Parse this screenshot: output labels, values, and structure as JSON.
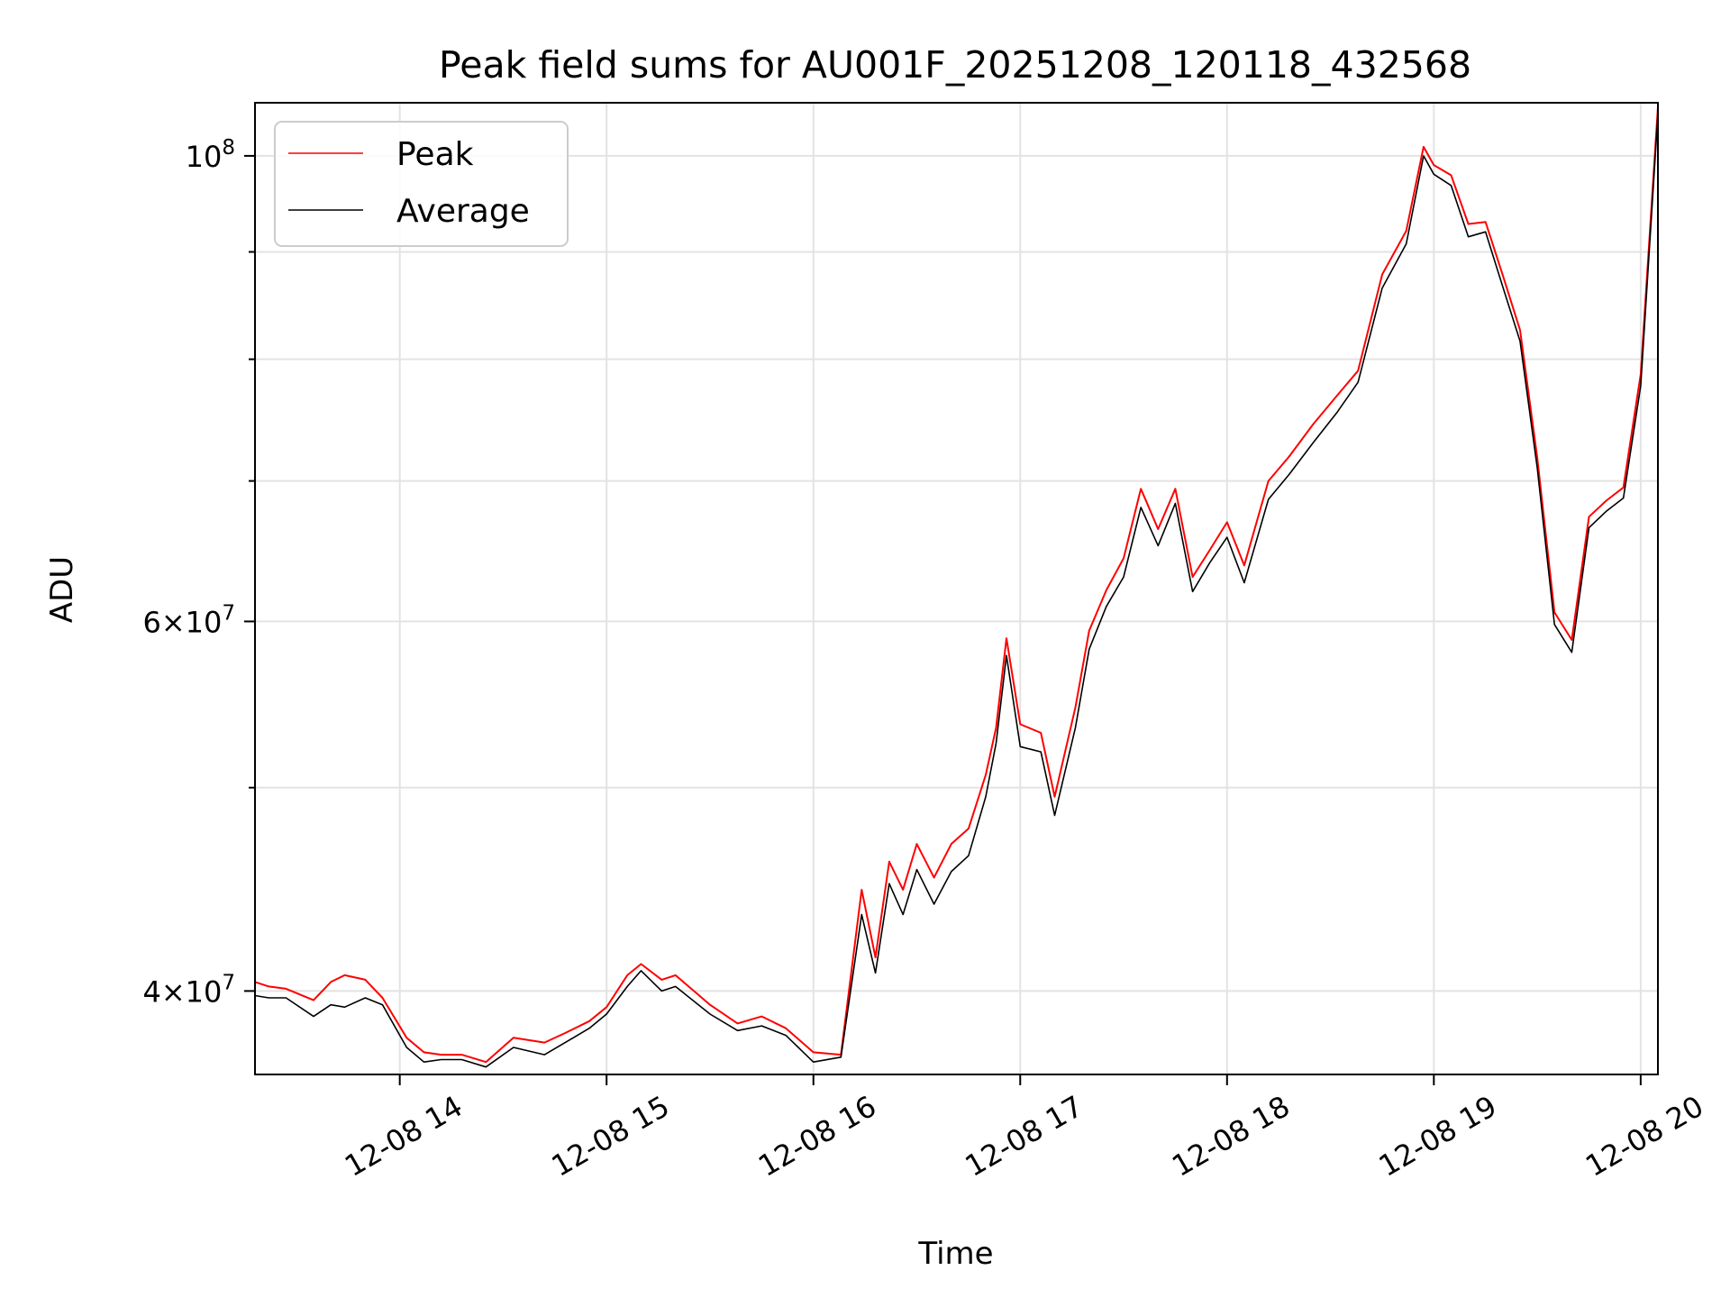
{
  "chart_data": {
    "type": "line",
    "title": "Peak field sums for AU001F_20251208_120118_432568",
    "xlabel": "Time",
    "ylabel": "ADU",
    "y_scale": "log",
    "xlim": [
      "12-08 13:18",
      "12-08 20:05"
    ],
    "ylim": [
      36500000,
      106000000
    ],
    "grid": true,
    "legend_position": "upper-left",
    "x_ticks": [
      "12-08 14",
      "12-08 15",
      "12-08 16",
      "12-08 17",
      "12-08 18",
      "12-08 19",
      "12-08 20"
    ],
    "x_tick_times": [
      "12-08 14:00",
      "12-08 15:00",
      "12-08 16:00",
      "12-08 17:00",
      "12-08 18:00",
      "12-08 19:00",
      "12-08 20:00"
    ],
    "y_ticks_major": [
      {
        "value": 40000000,
        "mantissa": "4",
        "exponent": "7"
      },
      {
        "value": 60000000,
        "mantissa": "6",
        "exponent": "7"
      },
      {
        "value": 100000000,
        "mantissa": "",
        "exponent": "8"
      }
    ],
    "y_ticks_minor": [
      50000000,
      70000000,
      80000000,
      90000000
    ],
    "series": [
      {
        "name": "Peak",
        "color": "#ff0000",
        "x": [
          "12-08 13:18",
          "12-08 13:22",
          "12-08 13:27",
          "12-08 13:35",
          "12-08 13:40",
          "12-08 13:44",
          "12-08 13:50",
          "12-08 13:55",
          "12-08 14:02",
          "12-08 14:07",
          "12-08 14:12",
          "12-08 14:18",
          "12-08 14:25",
          "12-08 14:33",
          "12-08 14:42",
          "12-08 14:48",
          "12-08 14:55",
          "12-08 15:00",
          "12-08 15:06",
          "12-08 15:10",
          "12-08 15:16",
          "12-08 15:20",
          "12-08 15:30",
          "12-08 15:38",
          "12-08 15:45",
          "12-08 15:52",
          "12-08 16:00",
          "12-08 16:08",
          "12-08 16:14",
          "12-08 16:18",
          "12-08 16:22",
          "12-08 16:26",
          "12-08 16:30",
          "12-08 16:35",
          "12-08 16:40",
          "12-08 16:45",
          "12-08 16:50",
          "12-08 16:53",
          "12-08 16:56",
          "12-08 17:00",
          "12-08 17:06",
          "12-08 17:10",
          "12-08 17:16",
          "12-08 17:20",
          "12-08 17:25",
          "12-08 17:30",
          "12-08 17:35",
          "12-08 17:40",
          "12-08 17:45",
          "12-08 17:50",
          "12-08 17:55",
          "12-08 18:00",
          "12-08 18:05",
          "12-08 18:12",
          "12-08 18:18",
          "12-08 18:25",
          "12-08 18:32",
          "12-08 18:38",
          "12-08 18:45",
          "12-08 18:52",
          "12-08 18:57",
          "12-08 19:00",
          "12-08 19:05",
          "12-08 19:10",
          "12-08 19:15",
          "12-08 19:20",
          "12-08 19:25",
          "12-08 19:30",
          "12-08 19:35",
          "12-08 19:40",
          "12-08 19:45",
          "12-08 19:50",
          "12-08 19:55",
          "12-08 20:00",
          "12-08 20:05"
        ],
        "values": [
          40400000,
          40200000,
          40100000,
          39600000,
          40400000,
          40700000,
          40500000,
          39700000,
          38000000,
          37400000,
          37300000,
          37300000,
          37000000,
          38000000,
          37800000,
          38200000,
          38700000,
          39300000,
          40700000,
          41200000,
          40500000,
          40700000,
          39400000,
          38600000,
          38900000,
          38400000,
          37400000,
          37300000,
          44700000,
          41500000,
          46100000,
          44700000,
          47000000,
          45300000,
          47000000,
          47800000,
          50700000,
          53400000,
          58900000,
          53600000,
          53100000,
          49500000,
          54600000,
          59400000,
          62100000,
          64300000,
          69400000,
          66400000,
          69400000,
          63000000,
          64900000,
          66900000,
          63800000,
          70000000,
          71900000,
          74500000,
          76900000,
          79000000,
          87800000,
          92100000,
          101000000,
          99000000,
          97900000,
          92800000,
          93000000,
          87700000,
          82600000,
          71800000,
          60600000,
          58800000,
          67300000,
          68500000,
          69500000,
          78700000,
          105500000
        ]
      },
      {
        "name": "Average",
        "color": "#000000",
        "x": [
          "12-08 13:18",
          "12-08 13:22",
          "12-08 13:27",
          "12-08 13:35",
          "12-08 13:40",
          "12-08 13:44",
          "12-08 13:50",
          "12-08 13:55",
          "12-08 14:02",
          "12-08 14:07",
          "12-08 14:12",
          "12-08 14:18",
          "12-08 14:25",
          "12-08 14:33",
          "12-08 14:42",
          "12-08 14:48",
          "12-08 14:55",
          "12-08 15:00",
          "12-08 15:06",
          "12-08 15:10",
          "12-08 15:16",
          "12-08 15:20",
          "12-08 15:30",
          "12-08 15:38",
          "12-08 15:45",
          "12-08 15:52",
          "12-08 16:00",
          "12-08 16:08",
          "12-08 16:14",
          "12-08 16:18",
          "12-08 16:22",
          "12-08 16:26",
          "12-08 16:30",
          "12-08 16:35",
          "12-08 16:40",
          "12-08 16:45",
          "12-08 16:50",
          "12-08 16:53",
          "12-08 16:56",
          "12-08 17:00",
          "12-08 17:06",
          "12-08 17:10",
          "12-08 17:16",
          "12-08 17:20",
          "12-08 17:25",
          "12-08 17:30",
          "12-08 17:35",
          "12-08 17:40",
          "12-08 17:45",
          "12-08 17:50",
          "12-08 17:55",
          "12-08 18:00",
          "12-08 18:05",
          "12-08 18:12",
          "12-08 18:18",
          "12-08 18:25",
          "12-08 18:32",
          "12-08 18:38",
          "12-08 18:45",
          "12-08 18:52",
          "12-08 18:57",
          "12-08 19:00",
          "12-08 19:05",
          "12-08 19:10",
          "12-08 19:15",
          "12-08 19:20",
          "12-08 19:25",
          "12-08 19:30",
          "12-08 19:35",
          "12-08 19:40",
          "12-08 19:45",
          "12-08 19:50",
          "12-08 19:55",
          "12-08 20:00",
          "12-08 20:05"
        ],
        "values": [
          39800000,
          39700000,
          39700000,
          38900000,
          39400000,
          39300000,
          39700000,
          39400000,
          37600000,
          37000000,
          37100000,
          37100000,
          36800000,
          37600000,
          37300000,
          37800000,
          38400000,
          39000000,
          40200000,
          40900000,
          40000000,
          40200000,
          39000000,
          38300000,
          38500000,
          38100000,
          37000000,
          37200000,
          43500000,
          40800000,
          45000000,
          43500000,
          45700000,
          44000000,
          45600000,
          46400000,
          49500000,
          52500000,
          57800000,
          52300000,
          52000000,
          48500000,
          53400000,
          58200000,
          61000000,
          63000000,
          68000000,
          65200000,
          68300000,
          62000000,
          64000000,
          65800000,
          62600000,
          68600000,
          70500000,
          73000000,
          75500000,
          78000000,
          86500000,
          90800000,
          100000000,
          98000000,
          96800000,
          91500000,
          92000000,
          86600000,
          81600000,
          71000000,
          59800000,
          58000000,
          66500000,
          67700000,
          68700000,
          77700000,
          104700000
        ]
      }
    ]
  }
}
